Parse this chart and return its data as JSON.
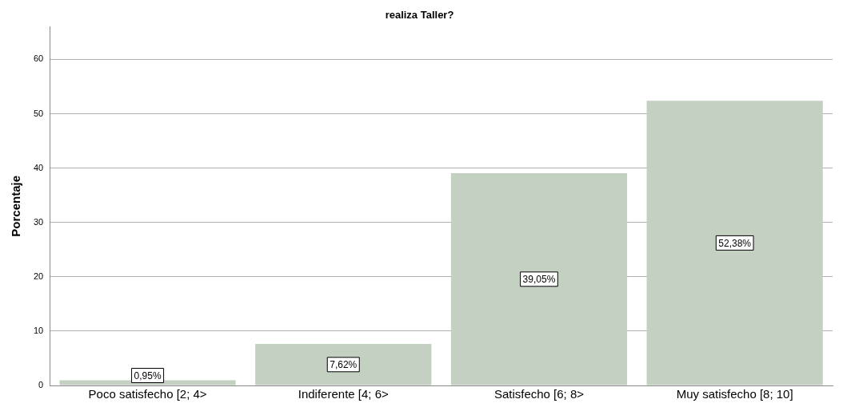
{
  "chart_data": {
    "type": "bar",
    "title": "realiza Taller?",
    "ylabel": "Porcentaje",
    "categories": [
      "Poco satisfecho [2; 4>",
      "Indiferente [4; 6>",
      "Satisfecho [6; 8>",
      "Muy satisfecho [8; 10]"
    ],
    "values": [
      0.95,
      7.62,
      39.05,
      52.38
    ],
    "color": "#c4d0c2",
    "value_labels": [
      "0,95%",
      "7,62%",
      "39,05%",
      "52,38%"
    ],
    "ylim": [
      0,
      66
    ],
    "yticks": [
      0,
      10,
      20,
      30,
      40,
      50,
      60
    ],
    "grid": "y"
  }
}
